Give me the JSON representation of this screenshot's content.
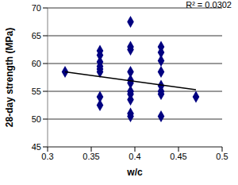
{
  "chart_data": {
    "type": "scatter",
    "x_label": "w/c",
    "y_label": "28-day strength (MPa)",
    "annotation": "R² = 0.0302",
    "grid": true,
    "marker": "diamond",
    "color": "#000080",
    "xlim": [
      0.3,
      0.5
    ],
    "xticks": [
      0.3,
      0.35,
      0.4,
      0.45,
      0.5
    ],
    "ylim": [
      45,
      70
    ],
    "yticks": [
      45,
      50,
      55,
      60,
      65,
      70
    ],
    "x": [
      0.32,
      0.36,
      0.36,
      0.36,
      0.36,
      0.36,
      0.36,
      0.36,
      0.36,
      0.395,
      0.395,
      0.395,
      0.395,
      0.395,
      0.395,
      0.395,
      0.395,
      0.395,
      0.395,
      0.395,
      0.43,
      0.43,
      0.43,
      0.43,
      0.43,
      0.43,
      0.43,
      0.43,
      0.47
    ],
    "values": [
      58.5,
      62.3,
      61.5,
      60.3,
      59.5,
      59,
      58.5,
      54,
      52.5,
      67.5,
      63,
      62.5,
      58.5,
      57,
      56.5,
      55,
      54.5,
      53.5,
      51,
      50.5,
      63,
      62,
      60.5,
      58.5,
      56,
      55,
      54.5,
      50.5,
      54
    ],
    "trendline": {
      "x": [
        0.32,
        0.47
      ],
      "values": [
        58.5,
        55.3
      ],
      "color": "#000000",
      "line_style": "solid"
    }
  }
}
